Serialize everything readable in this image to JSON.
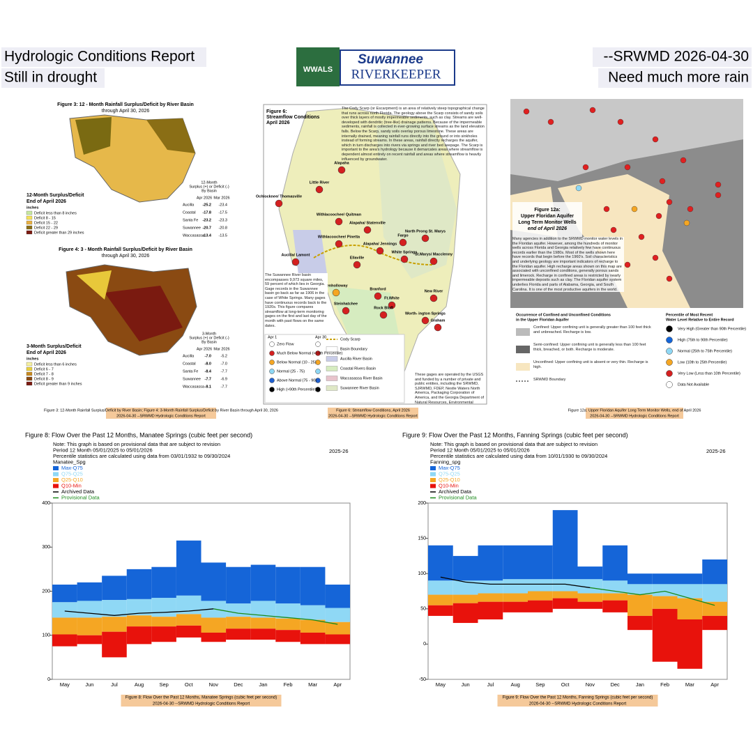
{
  "header": {
    "left": [
      "Hydrologic Conditions Report",
      "Still in drought"
    ],
    "right": [
      "--SRWMD 2026-04-30",
      "Need much more rain"
    ],
    "logo": {
      "top": "Suwannee",
      "bottom": "RIVERKEEPER",
      "badge": "WWALS"
    }
  },
  "fig3": {
    "title": [
      "Figure 3:  12 - Month Rainfall Surplus/Deficit by River Basin",
      "through April 30, 2026"
    ],
    "legend_title": [
      "12-Month Surplus/Deficit",
      "End of April 2026",
      "inches"
    ],
    "legend": [
      "Deficit less than 8 inches",
      "Deficit 8 - 15",
      "Deficit 15 - 22",
      "Deficit 22 - 29",
      "Deficit greater than 29 inches"
    ],
    "table_head": [
      "12-Month",
      "Surplus (+) or Deficit (-)",
      "By Basin",
      "Apr 2026",
      "Mar 2026"
    ],
    "rows": [
      [
        "Aucilla",
        "-25.2",
        "-23.4"
      ],
      [
        "Coastal",
        "-17.8",
        "-17.5"
      ],
      [
        "Santa Fe",
        "-23.2",
        "-23.3"
      ],
      [
        "Suwannee",
        "-20.7",
        "-20.8"
      ],
      [
        "Waccasassa",
        "-13.4",
        "-13.5"
      ]
    ]
  },
  "fig4": {
    "title": [
      "Figure 4:  3 - Month Rainfall Surplus/Deficit by River Basin",
      "through April 30, 2026"
    ],
    "legend_title": [
      "3-Month Surplus/Deficit",
      "End of April 2026",
      "inches"
    ],
    "legend": [
      "Deficit less than 6 inches",
      "Deficit 6 - 7",
      "Deficit 7 - 8",
      "Deficit 8 - 9",
      "Deficit greater than 9 inches"
    ],
    "table_head": [
      "3-Month",
      "Surplus (+) or Deficit (-)",
      "By Basin",
      "Apr 2026",
      "Mar 2026"
    ],
    "rows": [
      [
        "Aucilla",
        "-7.0",
        "-5.2"
      ],
      [
        "Coastal",
        "-8.0",
        "-7.0"
      ],
      [
        "Santa Fe",
        "-8.4",
        "-7.7"
      ],
      [
        "Suwannee",
        "-7.7",
        "-6.9"
      ],
      [
        "Waccasassa",
        "-8.1",
        "-7.7"
      ]
    ],
    "caption": [
      "Figure 3: 12-Month Rainfall Surplus/Deficit by River Basin; Figure 4: 3-Month Rainfall Surplus/Deficit by River Basin through April 30, 2026",
      "2026-04-30 --SRWMD Hydrologic Conditions Report"
    ]
  },
  "fig6": {
    "title": [
      "Figure 6:",
      "Streamflow Conditions",
      "April 2026"
    ],
    "text": "The Cody Scarp (or Escarpment) is an area of relatively steep topographical change that runs across north Florida. The geology above the Scarp consists of sandy soils over thick layers of mostly impermeable sediments, such as clay. Streams are well-developed with dendritic (tree-like) drainage patterns. Because of the impermeable sediments, rainfall is collected in ever-growing surface streams as the land elevation falls. Below the Scarp, sandy soils overlay porous limestone. These areas are internally drained, meaning rainfall runs directly into the ground or into sinkholes instead of forming streams. In these areas, rainfall directly recharges the aquifer, which in turn discharges into rivers via springs and river bed seepage. The Scarp is important to the area's hydrology because it demarcates areas where streamflow is dependent almost entirely on recent rainfall and areas where streamflow is heavily influenced by groundwater.",
    "basin_text": "The Suwannee River basin encompasses 9,973 square miles, 59 percent of which lies in Georgia. Gage records in the Suwannee basin go back as far as 1906 in the case of White Springs. Many gages have continuous records back to the 1920s. This figure compares streamflow at long-term monitoring gages on the first and last day of the month with past flows on the same dates.",
    "stations": [
      "Alapaha",
      "Little River",
      "Ochlocknee/ Thomasville",
      "Withlacoochee/ Quitman",
      "Withlacoochee/ Pinetta",
      "Alapaha/ Statenville",
      "Fargo",
      "North Prong St. Marys",
      "Alapaha/ Jennings",
      "White Springs",
      "St.Marys/ Macclenny",
      "Aucilla/ Lamont",
      "Ellaville",
      "Econfina",
      "Fenholloway",
      "Branford",
      "Ft.White",
      "New River",
      "Steinhatchee",
      "Rock Bluff",
      "Worth- ington Springs",
      "Graham"
    ],
    "legend_head": [
      "Apr 1",
      "Apr 30"
    ],
    "legend": [
      "Zero Flow",
      "Much Below Normal (<10th Percentile)",
      "Below Normal (10 - 25)",
      "Normal (25 - 75)",
      "Above Normal (75 - 90)",
      "High (>90th Percentile)"
    ],
    "legend2": [
      "Cody Scarp",
      "Basin Boundary",
      "Aucilla River Basin",
      "Coastal Rivers Basin",
      "Waccasassa River Basin",
      "Suwannee River Basin"
    ],
    "note": "These gages are operated by the USGS and funded by a number of private and public entities, including the SRWMD, SJRWMD, FDEP, Nestle Waters North America, Packaging Corporation of America, and the Georgia Department of Natural Resources, Environmental Protection Division (EPD).",
    "caption": [
      "Figure 6: Streamflow Conditions, April 2026",
      "2026-04-30 --SRWMD Hydrologic Conditions Report"
    ]
  },
  "fig12": {
    "title": [
      "Figure 12a:",
      "Upper Floridan Aquifer",
      "Long Term Monitor Wells",
      "end of April 2026"
    ],
    "text": "Many agencies in addition to the SRWMD monitor water levels in the Floridan aquifer. However, among the hundreds of monitor wells across Florida and Georgia relatively few have continuous records earlier than the 1980s. Most of the wells shown here have records that begin before the 1960's. Soil characteristics and underlying geology are important indicators of recharge to the Floridan aquifer. High recharge areas shown on this map are associated with unconfined conditions, generally porous sands and limerock. Recharge in confined areas is restricted by nearly impermeable deposits such as clay. The Floridan aquifer system underlies Florida and parts of Alabama, Georgia, and South Carolina. It is one of the most productive aquifers in the world.",
    "legend_head": [
      "Occurrence of Confined and Unconfined Conditions",
      "in the Upper Floridan Aquifer"
    ],
    "legend": [
      "Confined: Upper confining unit is generally greater than 100 feet thick and unbreached. Recharge is low.",
      "Semi-confined: Upper confining unit is generally less than 100 feet thick, breached, or both. Recharge is moderate.",
      "Unconfined: Upper confining unit is absent or very thin. Recharge is high.",
      "SRWMD Boundary"
    ],
    "pct_head": [
      "Percentile of Most Recent",
      "Water Level Relative to Entire Record"
    ],
    "pct": [
      "Very High (Greater than 90th Percentile)",
      "High (75th to 90th Percentile)",
      "Normal (25th to 75th Percentile)",
      "Low (10th to 25th Percentile)",
      "Very Low (Less than 10th Percentile)",
      "Data Not Available"
    ],
    "caption": [
      "Figure 12a: Upper Floridan Aquifer Long Term Monitor Wells, end of April 2026",
      "2026-04-30 --SRWMD Hydrologic Conditions Report"
    ]
  },
  "chart_data": [
    {
      "type": "band",
      "title": "Figure 8:  Flow Over the Past 12 Months, Manatee Springs (cubic feet per second)",
      "notes": [
        "Note: This graph is based on provisional data that are subject to revision",
        "Period   12 Month  05/01/2025  to  05/01/2026",
        "Percentile statistics are calculated using data from 03/01/1932 to 09/30/2024",
        "Manatee_Spg"
      ],
      "year_label": "2025-26",
      "categories": [
        "May",
        "Jun",
        "Jul",
        "Aug",
        "Sep",
        "Oct",
        "Nov",
        "Dec",
        "Jan",
        "Feb",
        "Mar",
        "Apr"
      ],
      "ylim": [
        0,
        400
      ],
      "yticks": [
        0,
        100,
        200,
        300,
        400
      ],
      "bands": [
        {
          "name": "Max-Q75",
          "color": "#1565d8",
          "values": [
            215,
            220,
            235,
            250,
            255,
            315,
            265,
            255,
            260,
            255,
            255,
            215
          ],
          "low": [
            175,
            178,
            180,
            182,
            185,
            190,
            178,
            172,
            178,
            172,
            168,
            162
          ]
        },
        {
          "name": "Q75-Q25",
          "color": "#8fd8f5",
          "values": [
            175,
            178,
            180,
            182,
            185,
            190,
            178,
            172,
            178,
            172,
            168,
            162
          ],
          "low": [
            140,
            140,
            142,
            145,
            142,
            148,
            140,
            142,
            140,
            138,
            135,
            130
          ]
        },
        {
          "name": "Q25-Q10",
          "color": "#f5a623",
          "values": [
            140,
            140,
            142,
            145,
            142,
            148,
            140,
            142,
            140,
            138,
            135,
            130
          ],
          "low": [
            102,
            100,
            108,
            120,
            120,
            122,
            106,
            115,
            115,
            112,
            106,
            102
          ]
        },
        {
          "name": "Q10-Min",
          "color": "#e8120c",
          "values": [
            102,
            100,
            108,
            120,
            120,
            122,
            106,
            115,
            115,
            112,
            106,
            102
          ],
          "low": [
            75,
            80,
            50,
            80,
            85,
            95,
            85,
            90,
            90,
            85,
            80,
            80
          ]
        }
      ],
      "series": [
        {
          "name": "Archived Data",
          "color": "#000000",
          "values": [
            155,
            150,
            145,
            150,
            152,
            155,
            160,
            null,
            null,
            null,
            null,
            null
          ]
        },
        {
          "name": "Provisional Data",
          "color": "#1a8a1a",
          "values": [
            null,
            null,
            null,
            null,
            null,
            null,
            160,
            150,
            145,
            140,
            135,
            125
          ]
        }
      ],
      "caption": [
        "Figure 8: Flow Over the Past 12 Months, Manatee Springs (cubic feet per second)",
        "2026-04-30 --SRWMD Hydrologic Conditions Report"
      ]
    },
    {
      "type": "band",
      "title": "Figure 9:  Flow Over the Past 12 Months, Fanning Springs (cubic feet per second)",
      "notes": [
        "Note: This graph is based on provisional data that are subject to revision",
        "Period   12 Month  05/01/2025  to  05/01/2026",
        "Percentile statistics are calculated using data from 10/01/1930 to 09/30/2024",
        "Fanning_spg"
      ],
      "year_label": "2025-26",
      "categories": [
        "May",
        "Jun",
        "Jul",
        "Aug",
        "Sep",
        "Oct",
        "Nov",
        "Dec",
        "Jan",
        "Feb",
        "Mar",
        "Apr"
      ],
      "ylim": [
        -50,
        200
      ],
      "yticks": [
        -50,
        0,
        50,
        100,
        150,
        200
      ],
      "bands": [
        {
          "name": "Max-Q75",
          "color": "#1565d8",
          "values": [
            140,
            125,
            140,
            140,
            140,
            190,
            110,
            140,
            100,
            100,
            100,
            120
          ],
          "low": [
            90,
            90,
            90,
            92,
            92,
            92,
            92,
            90,
            85,
            85,
            85,
            85
          ]
        },
        {
          "name": "Q75-Q25",
          "color": "#8fd8f5",
          "values": [
            90,
            90,
            90,
            92,
            92,
            92,
            92,
            90,
            85,
            85,
            85,
            85
          ],
          "low": [
            70,
            70,
            72,
            72,
            75,
            75,
            72,
            72,
            70,
            68,
            65,
            60
          ]
        },
        {
          "name": "Q25-Q10",
          "color": "#f5a623",
          "values": [
            70,
            70,
            72,
            72,
            75,
            75,
            72,
            72,
            70,
            68,
            65,
            60
          ],
          "low": [
            55,
            58,
            60,
            60,
            62,
            65,
            60,
            62,
            40,
            50,
            35,
            40
          ]
        },
        {
          "name": "Q10-Min",
          "color": "#e8120c",
          "values": [
            55,
            58,
            60,
            60,
            62,
            65,
            60,
            62,
            40,
            50,
            35,
            40
          ],
          "low": [
            40,
            30,
            35,
            45,
            45,
            50,
            50,
            45,
            20,
            -25,
            -35,
            20
          ]
        }
      ],
      "series": [
        {
          "name": "Archived Data",
          "color": "#000000",
          "values": [
            95,
            88,
            85,
            85,
            85,
            85,
            80,
            null,
            null,
            null,
            null,
            null
          ]
        },
        {
          "name": "Provisional Data",
          "color": "#1a8a1a",
          "values": [
            null,
            null,
            null,
            null,
            null,
            null,
            80,
            75,
            70,
            75,
            65,
            55
          ]
        }
      ],
      "caption": [
        "Figure 9: Flow Over the Past 12 Months, Fanning Springs (cubic feet per second)",
        "2026-04-30 --SRWMD Hydrologic Conditions Report"
      ]
    }
  ]
}
